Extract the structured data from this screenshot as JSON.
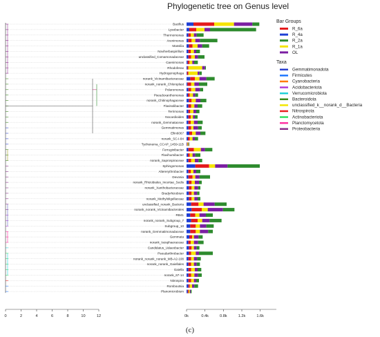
{
  "title": "Phylogenetic tree on Genus level",
  "caption": "(c)",
  "legend": {
    "bar_groups_title": "Bar Groups",
    "bar_groups": [
      {
        "name": "R_6a",
        "color": "#e41a1c"
      },
      {
        "name": "R_4a",
        "color": "#1f3fd4"
      },
      {
        "name": "R_2a",
        "color": "#2e8b2e"
      },
      {
        "name": "R_1a",
        "color": "#f5e400"
      },
      {
        "name": "OL",
        "color": "#7b1fa2"
      }
    ],
    "taxa_title": "Taxa",
    "taxa": [
      {
        "name": "Gemmatimonadota",
        "color": "#2a3fcf"
      },
      {
        "name": "Firmicutes",
        "color": "#1f77ff"
      },
      {
        "name": "Cyanobacteria",
        "color": "#ff7a00"
      },
      {
        "name": "Acidobacteriota",
        "color": "#b03ad6"
      },
      {
        "name": "Verrucomicrobiota",
        "color": "#20d0d8"
      },
      {
        "name": "Bacteroidota",
        "color": "#3a8a1a"
      },
      {
        "name": "unclassified_k__norank_d__Bacteria",
        "color": "#f2e600"
      },
      {
        "name": "Nitrospirota",
        "color": "#e82020"
      },
      {
        "name": "Actinobacteriota",
        "color": "#30e060"
      },
      {
        "name": "Planctomycetota",
        "color": "#ff2fa0"
      },
      {
        "name": "Proteobacteria",
        "color": "#8a2a8a"
      }
    ]
  },
  "chart_data": {
    "type": "bar",
    "orientation": "horizontal",
    "stacked": true,
    "xlabel": "",
    "ylabel": "",
    "xlim": [
      0,
      1800
    ],
    "xticks": [
      "0k",
      "0.4k",
      "0.8k",
      "1.2k",
      "1.6k"
    ],
    "tree_xticks": [
      "0",
      "2",
      "4",
      "6",
      "8",
      "10",
      "12"
    ],
    "series_names": [
      "R_4a",
      "R_6a",
      "R_1a",
      "OL",
      "R_2a"
    ],
    "series_colors": [
      "#1f3fd4",
      "#e41a1c",
      "#f5e400",
      "#7b1fa2",
      "#2e8b2e"
    ],
    "categories": [
      "Bacillus",
      "Lysobacter",
      "Thermomonas",
      "Arenimonas",
      "Massilia",
      "Noviherbaspirillum",
      "unclassified_Comamonadaceae",
      "Caenimonas",
      "Rhodoferax",
      "Hydrogenophaga",
      "norank_Vicinamibacteraceae",
      "norank_norank_Chloroplast",
      "Polaromonas",
      "Pseudoxanthomonas",
      "norank_Chitinophagaceae",
      "Flavisolibacter",
      "Terrimonas",
      "Nocardioides",
      "norank_Gemmataceae",
      "Gemmatimonas",
      "Ellin6067",
      "norank_SC-I-84",
      "Tychonema_CCAP_1459-11B",
      "Ferruginibacter",
      "Flavihumibacter",
      "norank_Saprospiraceae",
      "Sphingomonas",
      "Altererythrobacter",
      "Devosia",
      "norank_Rhizobiales_Incertae_Sedis",
      "norank_Xanthobacteraceae",
      "Bradyrhizobium",
      "norank_Methyloligellaceae",
      "unclassified_norank_Bacteria",
      "norank_norank_Vicinamibacterales",
      "RB41",
      "norank_norank_Subgroup_7",
      "Subgroup_10",
      "norank_Gemmatimonadaceae",
      "Gemmata",
      "norank_Isosphaeraceae",
      "Candidatus_Udaeobacter",
      "Pseudarthrobacter",
      "norank_norank_norank_MB-A2-108",
      "norank_norank_Gaiellales",
      "Gaiella",
      "norank_67-14",
      "Nitrospira",
      "Romboutsia",
      "Planomicrobium"
    ],
    "series": [
      {
        "name": "R_4a",
        "values": [
          150,
          60,
          40,
          40,
          50,
          40,
          40,
          25,
          20,
          10,
          80,
          20,
          40,
          30,
          50,
          40,
          40,
          40,
          40,
          40,
          60,
          30,
          10,
          40,
          30,
          40,
          190,
          40,
          40,
          50,
          50,
          50,
          50,
          100,
          110,
          80,
          100,
          80,
          80,
          60,
          40,
          50,
          50,
          40,
          40,
          40,
          40,
          40,
          40,
          25
        ]
      },
      {
        "name": "R_6a",
        "values": [
          450,
          150,
          50,
          70,
          80,
          50,
          60,
          40,
          20,
          30,
          100,
          80,
          60,
          40,
          60,
          60,
          40,
          50,
          50,
          60,
          60,
          40,
          10,
          120,
          40,
          60,
          300,
          50,
          90,
          60,
          60,
          60,
          60,
          160,
          220,
          110,
          140,
          120,
          120,
          60,
          50,
          60,
          50,
          60,
          60,
          60,
          60,
          60,
          30,
          20
        ]
      },
      {
        "name": "R_1a",
        "values": [
          430,
          180,
          70,
          80,
          110,
          70,
          80,
          60,
          300,
          200,
          100,
          70,
          90,
          70,
          90,
          70,
          70,
          50,
          70,
          50,
          80,
          60,
          20,
          150,
          60,
          80,
          130,
          60,
          60,
          70,
          60,
          50,
          60,
          110,
          130,
          90,
          100,
          90,
          90,
          40,
          70,
          50,
          100,
          60,
          60,
          80,
          70,
          60,
          50,
          25
        ]
      },
      {
        "name": "OL",
        "values": [
          400,
          120,
          60,
          100,
          100,
          50,
          70,
          40,
          60,
          40,
          150,
          100,
          100,
          50,
          100,
          70,
          60,
          40,
          80,
          100,
          100,
          50,
          10,
          90,
          60,
          80,
          270,
          60,
          90,
          90,
          80,
          70,
          70,
          240,
          330,
          140,
          160,
          140,
          180,
          100,
          90,
          60,
          70,
          70,
          60,
          60,
          80,
          50,
          50,
          20
        ]
      },
      {
        "name": "R_2a",
        "values": [
          150,
          1000,
          150,
          380,
          150,
          80,
          140,
          80,
          20,
          50,
          180,
          180,
          70,
          60,
          130,
          100,
          70,
          60,
          110,
          80,
          110,
          70,
          10,
          160,
          110,
          80,
          700,
          90,
          230,
          60,
          50,
          50,
          60,
          260,
          250,
          150,
          260,
          160,
          100,
          90,
          120,
          60,
          300,
          80,
          70,
          80,
          80,
          60,
          80,
          20
        ]
      }
    ]
  }
}
